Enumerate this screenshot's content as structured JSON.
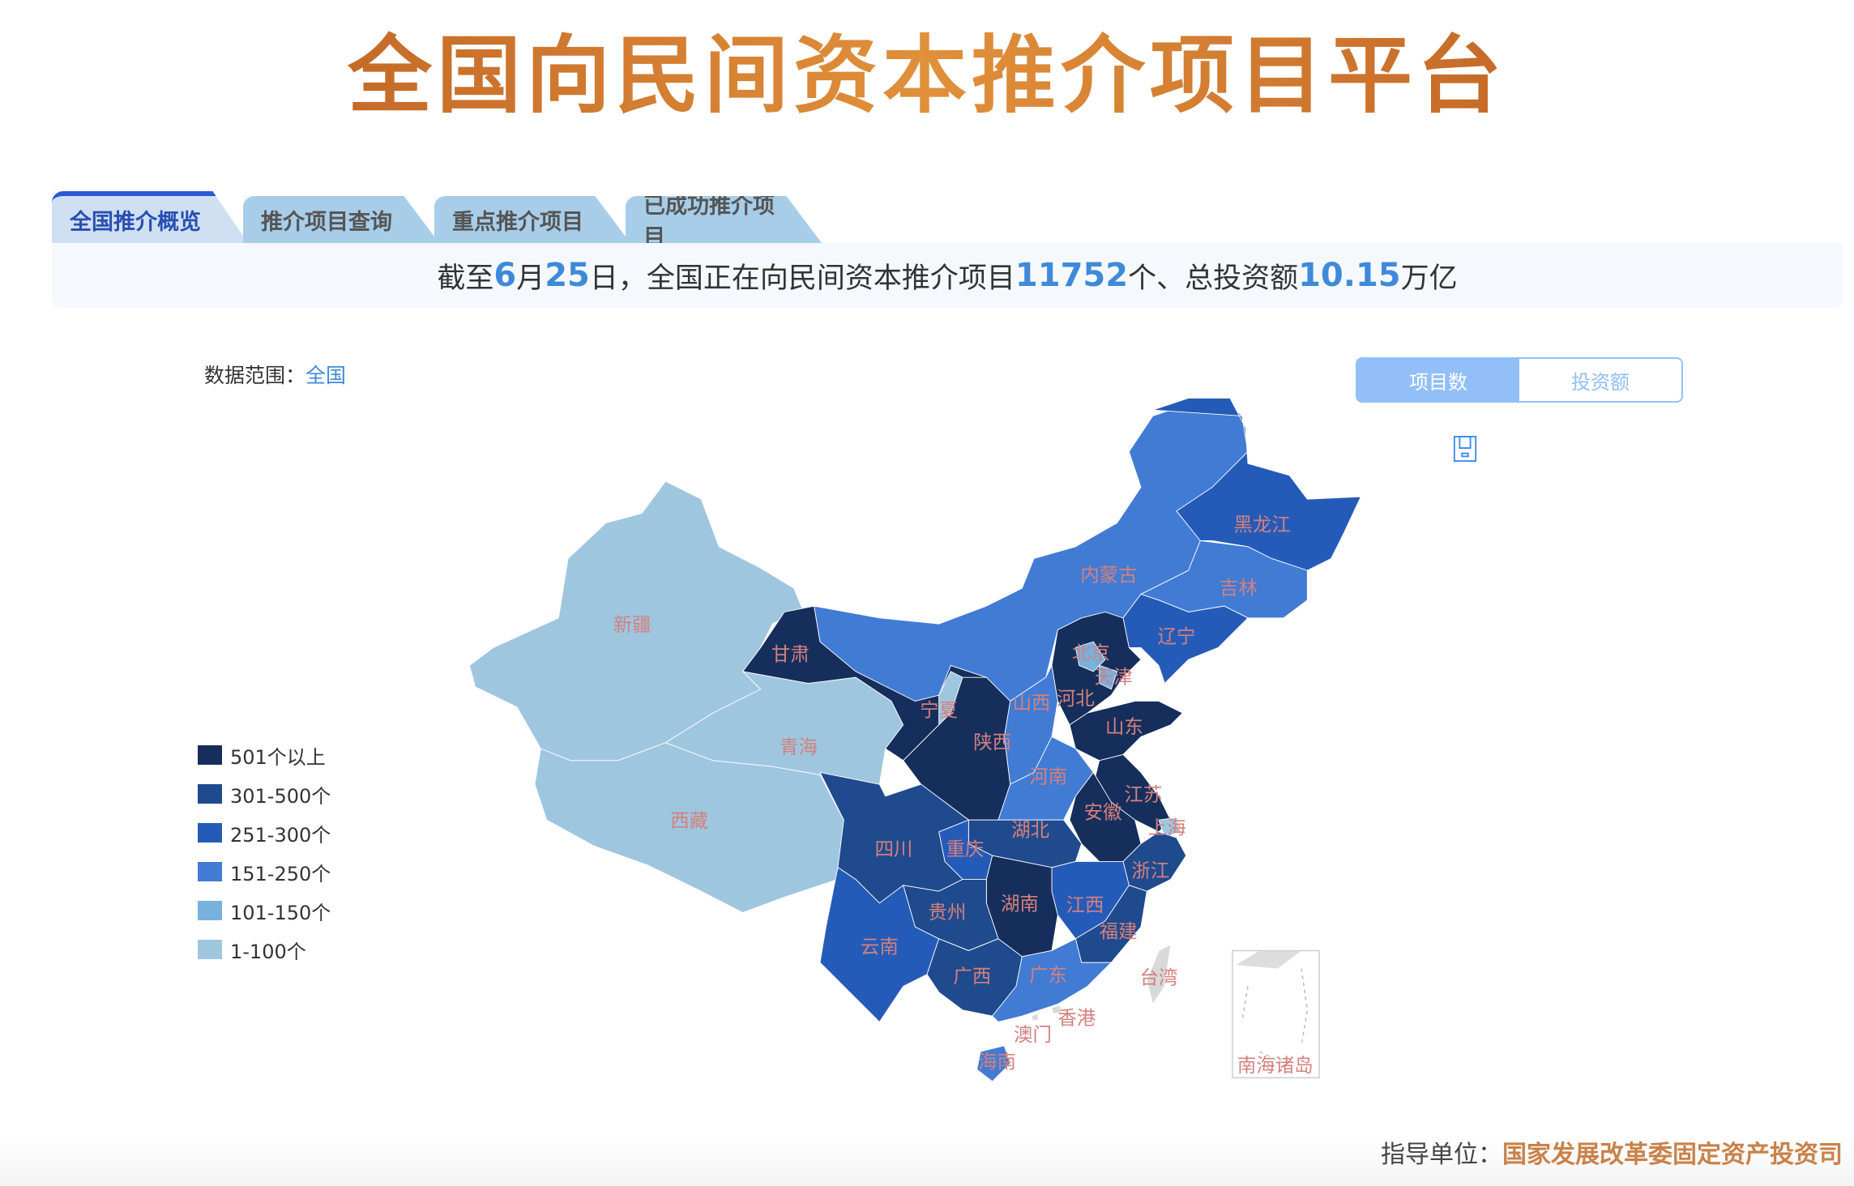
{
  "header": {
    "title": "全国向民间资本推介项目平台"
  },
  "tabs": [
    {
      "label": "全国推介概览",
      "active": true
    },
    {
      "label": "推介项目查询"
    },
    {
      "label": "重点推介项目"
    },
    {
      "label": "已成功推介项目"
    }
  ],
  "banner": {
    "p1": "截至",
    "month": "6",
    "p2": "月",
    "day": "25",
    "p3": "日，全国正在向民间资本推介项目",
    "count": "11752",
    "p4": "个、总投资额",
    "amount": "10.15",
    "p5": "万亿"
  },
  "scope": {
    "label": "数据范围：",
    "value": "全国"
  },
  "toggle": {
    "options": [
      "项目数",
      "投资额"
    ],
    "selected": "项目数"
  },
  "save_icon": "save-icon",
  "legend": [
    {
      "label": "501个以上",
      "color": "#152e5c"
    },
    {
      "label": "301-500个",
      "color": "#1f4a8d"
    },
    {
      "label": "251-300个",
      "color": "#255bb8"
    },
    {
      "label": "151-250个",
      "color": "#417bd4"
    },
    {
      "label": "101-150个",
      "color": "#78b0de"
    },
    {
      "label": "1-100个",
      "color": "#9fc6df"
    }
  ],
  "map": {
    "label_color": "#d4807e",
    "regions": [
      {
        "name": "新疆",
        "level": 5
      },
      {
        "name": "西藏",
        "level": 5
      },
      {
        "name": "青海",
        "level": 5
      },
      {
        "name": "甘肃",
        "level": 0
      },
      {
        "name": "内蒙古",
        "level": 3
      },
      {
        "name": "黑龙江",
        "level": 2
      },
      {
        "name": "吉林",
        "level": 3
      },
      {
        "name": "辽宁",
        "level": 2
      },
      {
        "name": "河北",
        "level": 0
      },
      {
        "name": "北京",
        "level": 4
      },
      {
        "name": "天津",
        "level": 4
      },
      {
        "name": "山西",
        "level": 3
      },
      {
        "name": "山东",
        "level": 0
      },
      {
        "name": "宁夏",
        "level": 5
      },
      {
        "name": "陕西",
        "level": 0
      },
      {
        "name": "河南",
        "level": 3
      },
      {
        "name": "江苏",
        "level": 0
      },
      {
        "name": "安徽",
        "level": 0
      },
      {
        "name": "上海",
        "level": 5
      },
      {
        "name": "湖北",
        "level": 1
      },
      {
        "name": "重庆",
        "level": 2
      },
      {
        "name": "四川",
        "level": 1
      },
      {
        "name": "浙江",
        "level": 1
      },
      {
        "name": "江西",
        "level": 2
      },
      {
        "name": "湖南",
        "level": 0
      },
      {
        "name": "贵州",
        "level": 1
      },
      {
        "name": "福建",
        "level": 1
      },
      {
        "name": "云南",
        "level": 2
      },
      {
        "name": "广西",
        "level": 1
      },
      {
        "name": "广东",
        "level": 3
      },
      {
        "name": "海南",
        "level": 3
      },
      {
        "name": "台湾",
        "level": -1
      },
      {
        "name": "香港",
        "level": -1
      },
      {
        "name": "澳门",
        "level": -1
      },
      {
        "name": "南海诸岛",
        "level": -1
      }
    ]
  },
  "footer": {
    "label": "指导单位：",
    "org": "国家发展改革委固定资产投资司"
  }
}
